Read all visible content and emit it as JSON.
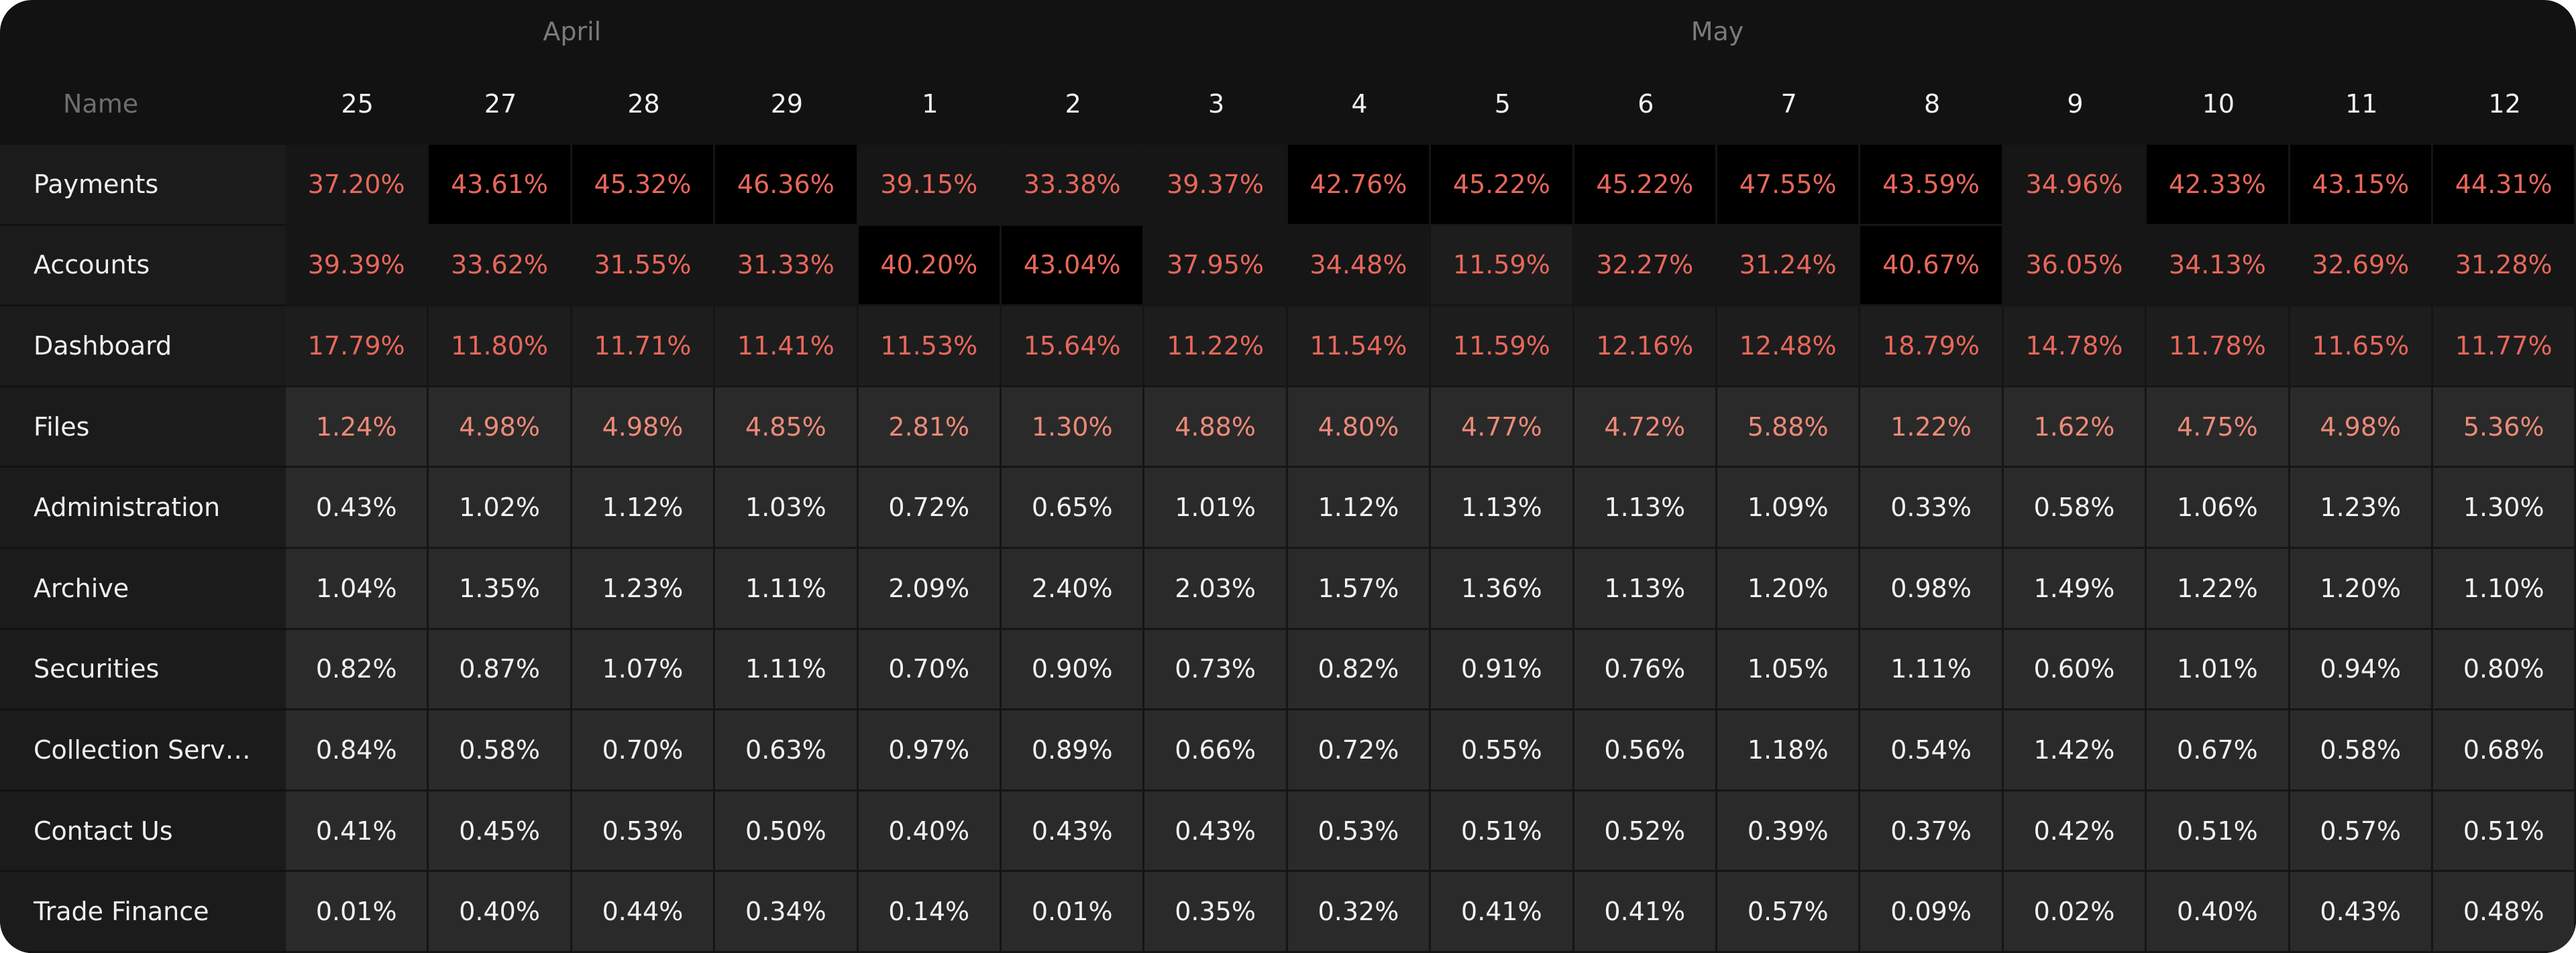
{
  "header": {
    "name_label": "Name",
    "months": [
      {
        "label": "April",
        "days": [
          "25",
          "27",
          "28",
          "29"
        ]
      },
      {
        "label": "May",
        "days": [
          "1",
          "2",
          "3",
          "4",
          "5",
          "6",
          "7",
          "8",
          "9",
          "10",
          "11",
          "12"
        ]
      }
    ]
  },
  "rows": [
    {
      "name": "Payments",
      "cells": [
        "37.20%",
        "43.61%",
        "45.32%",
        "46.36%",
        "39.15%",
        "33.38%",
        "39.37%",
        "42.76%",
        "45.22%",
        "45.22%",
        "47.55%",
        "43.59%",
        "34.96%",
        "42.33%",
        "43.15%",
        "44.31%"
      ]
    },
    {
      "name": "Accounts",
      "cells": [
        "39.39%",
        "33.62%",
        "31.55%",
        "31.33%",
        "40.20%",
        "43.04%",
        "37.95%",
        "34.48%",
        "11.59%",
        "32.27%",
        "31.24%",
        "40.67%",
        "36.05%",
        "34.13%",
        "32.69%",
        "31.28%"
      ]
    },
    {
      "name": "Dashboard",
      "cells": [
        "17.79%",
        "11.80%",
        "11.71%",
        "11.41%",
        "11.53%",
        "15.64%",
        "11.22%",
        "11.54%",
        "11.59%",
        "12.16%",
        "12.48%",
        "18.79%",
        "14.78%",
        "11.78%",
        "11.65%",
        "11.77%"
      ]
    },
    {
      "name": "Files",
      "cells": [
        "1.24%",
        "4.98%",
        "4.98%",
        "4.85%",
        "2.81%",
        "1.30%",
        "4.88%",
        "4.80%",
        "4.77%",
        "4.72%",
        "5.88%",
        "1.22%",
        "1.62%",
        "4.75%",
        "4.98%",
        "5.36%"
      ]
    },
    {
      "name": "Administration",
      "cells": [
        "0.43%",
        "1.02%",
        "1.12%",
        "1.03%",
        "0.72%",
        "0.65%",
        "1.01%",
        "1.12%",
        "1.13%",
        "1.13%",
        "1.09%",
        "0.33%",
        "0.58%",
        "1.06%",
        "1.23%",
        "1.30%"
      ]
    },
    {
      "name": "Archive",
      "cells": [
        "1.04%",
        "1.35%",
        "1.23%",
        "1.11%",
        "2.09%",
        "2.40%",
        "2.03%",
        "1.57%",
        "1.36%",
        "1.13%",
        "1.20%",
        "0.98%",
        "1.49%",
        "1.22%",
        "1.20%",
        "1.10%"
      ]
    },
    {
      "name": "Securities",
      "cells": [
        "0.82%",
        "0.87%",
        "1.07%",
        "1.11%",
        "0.70%",
        "0.90%",
        "0.73%",
        "0.82%",
        "0.91%",
        "0.76%",
        "1.05%",
        "1.11%",
        "0.60%",
        "1.01%",
        "0.94%",
        "0.80%"
      ]
    },
    {
      "name": "Collection Serv…",
      "cells": [
        "0.84%",
        "0.58%",
        "0.70%",
        "0.63%",
        "0.97%",
        "0.89%",
        "0.66%",
        "0.72%",
        "0.55%",
        "0.56%",
        "1.18%",
        "0.54%",
        "1.42%",
        "0.67%",
        "0.58%",
        "0.68%"
      ]
    },
    {
      "name": "Contact Us",
      "cells": [
        "0.41%",
        "0.45%",
        "0.53%",
        "0.50%",
        "0.40%",
        "0.43%",
        "0.43%",
        "0.53%",
        "0.51%",
        "0.52%",
        "0.39%",
        "0.37%",
        "0.42%",
        "0.51%",
        "0.57%",
        "0.51%"
      ]
    },
    {
      "name": "Trade Finance",
      "cells": [
        "0.01%",
        "0.40%",
        "0.44%",
        "0.34%",
        "0.14%",
        "0.01%",
        "0.35%",
        "0.32%",
        "0.41%",
        "0.41%",
        "0.57%",
        "0.09%",
        "0.02%",
        "0.40%",
        "0.43%",
        "0.48%"
      ]
    }
  ]
}
